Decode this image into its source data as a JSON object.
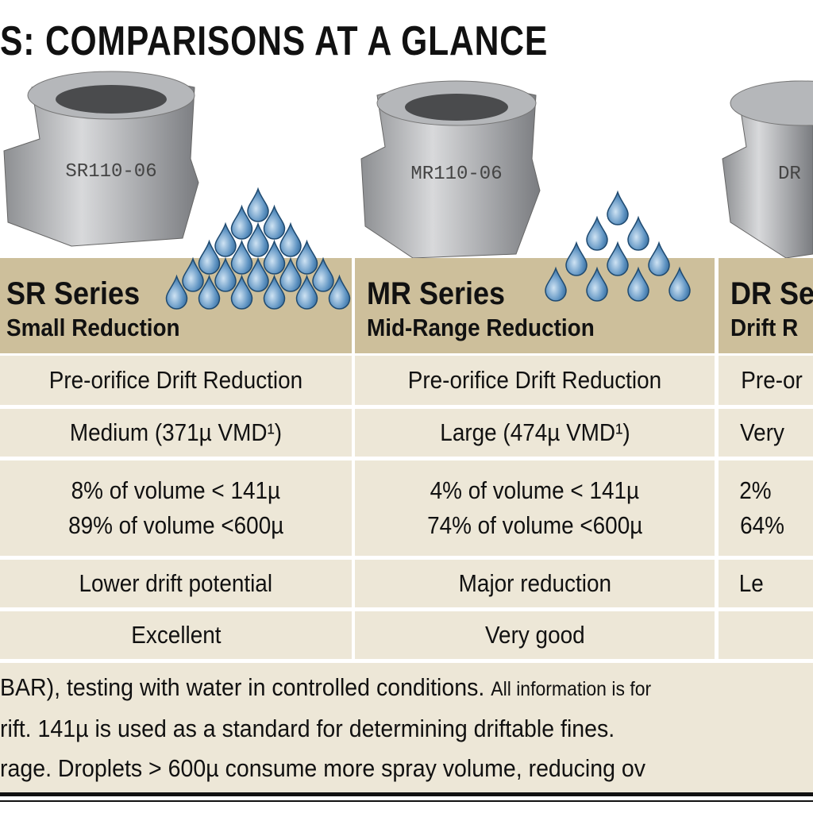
{
  "title": "S: COMPARISONS AT A GLANCE",
  "nozzles": [
    "SR110-06",
    "MR110-06",
    "DR"
  ],
  "columns": [
    {
      "series": "SR Series",
      "subtitle": "Small Reduction"
    },
    {
      "series": "MR Series",
      "subtitle": "Mid-Range Reduction"
    },
    {
      "series": "DR Se",
      "subtitle": "Drift R"
    }
  ],
  "rows": [
    [
      "Pre-orifice Drift Reduction",
      "Pre-orifice Drift Reduction",
      "Pre-or"
    ],
    [
      "Medium (371µ VMD¹)",
      "Large (474µ VMD¹)",
      "Very"
    ],
    [
      [
        "8% of volume < 141µ",
        "89% of volume <600µ"
      ],
      [
        "4% of volume < 141µ",
        "74% of volume <600µ"
      ],
      [
        "2%",
        "64%"
      ]
    ],
    [
      "Lower drift potential",
      "Major reduction",
      "Le"
    ],
    [
      "Excellent",
      "Very good"
    ]
  ],
  "footnotes": [
    [
      "BAR), testing with water in controlled conditions.",
      "All information is for"
    ],
    [
      "rift. 141µ is used as a standard for determining driftable fines."
    ],
    [
      "rage. Droplets > 600µ consume more spray volume, reducing ov"
    ]
  ]
}
